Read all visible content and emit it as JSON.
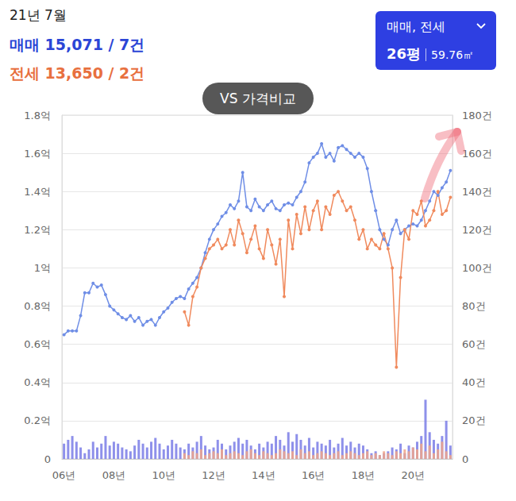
{
  "header": {
    "date": "21년 7월",
    "lines": [
      {
        "text": "매매 15,071 / 7건",
        "color": "#2b45d6"
      },
      {
        "text": "전세 13,650 / 2건",
        "color": "#e8703f"
      }
    ],
    "compare_button": "VS 가격비교",
    "selector": {
      "title": "매매, 전세",
      "size": [
        "26평",
        "59.76㎡"
      ]
    }
  },
  "chart_data": {
    "type": "line",
    "categories": [
      "06년",
      null,
      null,
      null,
      null,
      null,
      null,
      null,
      null,
      null,
      null,
      null,
      "08년",
      null,
      null,
      null,
      null,
      null,
      null,
      null,
      null,
      null,
      null,
      null,
      "10년",
      null,
      null,
      null,
      null,
      null,
      null,
      null,
      null,
      null,
      null,
      null,
      "12년",
      null,
      null,
      null,
      null,
      null,
      null,
      null,
      null,
      null,
      null,
      null,
      "14년",
      null,
      null,
      null,
      null,
      null,
      null,
      null,
      null,
      null,
      null,
      null,
      "16년",
      null,
      null,
      null,
      null,
      null,
      null,
      null,
      null,
      null,
      null,
      null,
      "18년",
      null,
      null,
      null,
      null,
      null,
      null,
      null,
      null,
      null,
      null,
      null,
      "20년",
      null,
      null,
      null,
      null,
      null,
      null,
      null,
      null,
      null
    ],
    "series": [
      {
        "name": "매매",
        "type": "line",
        "color": "#6f8ee6",
        "marker": "circle",
        "values": [
          0.65,
          0.67,
          0.67,
          0.67,
          0.75,
          0.87,
          0.87,
          0.92,
          0.9,
          0.91,
          0.86,
          0.8,
          0.78,
          0.76,
          0.74,
          0.73,
          0.75,
          0.72,
          0.74,
          0.7,
          0.72,
          0.73,
          0.7,
          0.74,
          0.77,
          0.79,
          0.82,
          0.84,
          0.85,
          0.84,
          0.89,
          0.92,
          0.95,
          1.0,
          1.08,
          1.15,
          1.2,
          1.23,
          1.27,
          1.29,
          1.33,
          1.31,
          1.35,
          1.5,
          1.32,
          1.3,
          1.36,
          1.32,
          1.3,
          1.33,
          1.35,
          1.31,
          1.3,
          1.33,
          1.34,
          1.33,
          1.37,
          1.4,
          1.45,
          1.55,
          1.58,
          1.6,
          1.65,
          1.58,
          1.6,
          1.56,
          1.63,
          1.64,
          1.62,
          1.6,
          1.58,
          1.6,
          1.58,
          1.52,
          1.4,
          1.3,
          1.2,
          1.15,
          1.12,
          1.2,
          1.25,
          1.18,
          1.2,
          1.22,
          1.23,
          1.22,
          1.25,
          1.3,
          1.35,
          1.4,
          1.38,
          1.42,
          1.45,
          1.51
        ]
      },
      {
        "name": "전세",
        "type": "line",
        "color": "#f08a5d",
        "marker": "circle",
        "values": [
          null,
          null,
          null,
          null,
          null,
          null,
          null,
          null,
          null,
          null,
          null,
          null,
          null,
          null,
          null,
          null,
          null,
          null,
          null,
          null,
          null,
          null,
          null,
          null,
          null,
          null,
          null,
          null,
          null,
          0.77,
          0.7,
          0.85,
          0.9,
          1.0,
          1.05,
          1.1,
          1.12,
          1.15,
          1.1,
          1.12,
          1.2,
          1.12,
          1.25,
          1.18,
          1.08,
          1.15,
          1.22,
          1.1,
          1.05,
          1.2,
          1.12,
          1.02,
          1.15,
          0.85,
          1.25,
          1.1,
          1.28,
          1.18,
          1.32,
          1.2,
          1.3,
          1.35,
          1.2,
          1.32,
          1.28,
          1.38,
          1.4,
          1.35,
          1.3,
          1.32,
          1.25,
          1.15,
          1.2,
          1.1,
          1.15,
          1.12,
          1.1,
          1.18,
          1.1,
          1.0,
          0.48,
          0.95,
          1.2,
          1.15,
          1.3,
          1.28,
          1.35,
          1.22,
          1.25,
          1.3,
          1.4,
          1.28,
          1.3,
          1.37
        ]
      },
      {
        "name": "매매",
        "type": "bar",
        "axis": "y2",
        "color": "#7a7ce6",
        "values": [
          8,
          10,
          12,
          9,
          6,
          3,
          5,
          9,
          6,
          8,
          12,
          7,
          9,
          8,
          6,
          5,
          4,
          7,
          10,
          8,
          6,
          9,
          11,
          8,
          5,
          7,
          10,
          8,
          6,
          5,
          8,
          6,
          9,
          12,
          7,
          5,
          6,
          10,
          8,
          5,
          7,
          9,
          11,
          8,
          10,
          7,
          5,
          8,
          6,
          9,
          8,
          12,
          10,
          7,
          14,
          9,
          13,
          10,
          7,
          11,
          6,
          9,
          8,
          7,
          10,
          6,
          8,
          11,
          7,
          9,
          6,
          8,
          7,
          5,
          3,
          4,
          2,
          3,
          4,
          6,
          5,
          8,
          3,
          7,
          6,
          9,
          12,
          31,
          14,
          10,
          8,
          12,
          20,
          7
        ]
      },
      {
        "name": "전세",
        "type": "bar",
        "axis": "y2",
        "color": "#f0a48a",
        "values": [
          null,
          null,
          null,
          null,
          null,
          null,
          null,
          null,
          null,
          null,
          null,
          null,
          null,
          null,
          null,
          null,
          null,
          null,
          null,
          null,
          null,
          null,
          null,
          null,
          null,
          null,
          null,
          null,
          null,
          3,
          2,
          4,
          3,
          5,
          2,
          3,
          4,
          3,
          5,
          2,
          3,
          4,
          3,
          2,
          4,
          5,
          3,
          2,
          4,
          3,
          2,
          3,
          5,
          4,
          3,
          4,
          2,
          5,
          3,
          4,
          2,
          3,
          4,
          3,
          2,
          3,
          4,
          2,
          3,
          4,
          3,
          2,
          3,
          4,
          2,
          3,
          2,
          4,
          3,
          2,
          4,
          3,
          5,
          4,
          6,
          5,
          8,
          4,
          7,
          3,
          5,
          9,
          4,
          2
        ]
      }
    ],
    "ylim": [
      0,
      1.8
    ],
    "yticks": [
      0,
      {
        "value": 0.2,
        "label": "0.2억"
      },
      {
        "value": 0.4,
        "label": "0.4억"
      },
      {
        "value": 0.6,
        "label": "0.6억"
      },
      {
        "value": 0.8,
        "label": "0.8억"
      },
      {
        "value": 1,
        "label": "1억"
      },
      {
        "value": 1.2,
        "label": "1.2억"
      },
      {
        "value": 1.4,
        "label": "1.4억"
      },
      {
        "value": 1.6,
        "label": "1.6억"
      },
      {
        "value": 1.8,
        "label": "1.8억"
      }
    ],
    "y2lim": [
      0,
      180
    ],
    "y2ticks": [
      0,
      {
        "value": 20,
        "label": "20건"
      },
      {
        "value": 40,
        "label": "40건"
      },
      {
        "value": 60,
        "label": "60건"
      },
      {
        "value": 80,
        "label": "80건"
      },
      {
        "value": 100,
        "label": "100건"
      },
      {
        "value": 120,
        "label": "120건"
      },
      {
        "value": 140,
        "label": "140건"
      },
      {
        "value": 160,
        "label": "160건"
      },
      {
        "value": 180,
        "label": "180건"
      }
    ],
    "grid": true
  }
}
